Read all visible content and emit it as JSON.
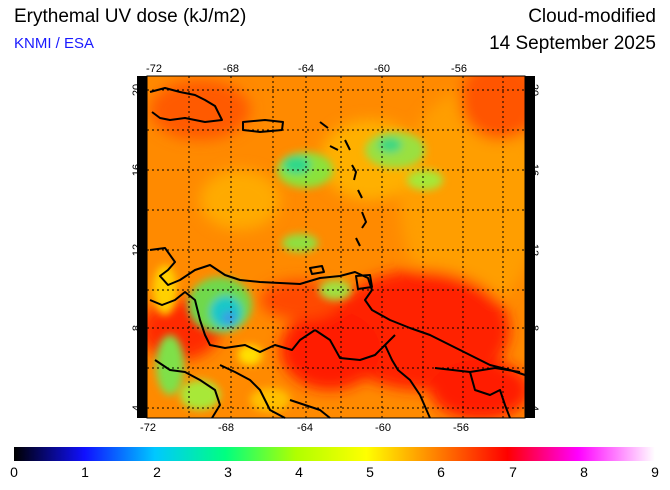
{
  "header": {
    "title": "Erythemal UV dose (kJ/m2)",
    "credit": "KNMI / ESA",
    "product": "Cloud-modified",
    "date": "14 September 2025"
  },
  "map": {
    "lon_range": [
      -72,
      -52
    ],
    "lat_range": [
      3.5,
      20.5
    ],
    "lon_ticks": [
      "-72",
      "-68",
      "-64",
      "-60",
      "-56"
    ],
    "lat_ticks": [
      "20",
      "16",
      "12",
      "8",
      "4"
    ]
  },
  "colorbar": {
    "labels": [
      "0",
      "1",
      "2",
      "3",
      "4",
      "5",
      "6",
      "7",
      "8",
      "9"
    ],
    "colors": [
      "#000000",
      "#1010ff",
      "#00c8ff",
      "#00ff80",
      "#b0ff00",
      "#ffff00",
      "#ff7f00",
      "#ff0000",
      "#ff00ff",
      "#ffffff"
    ]
  }
}
